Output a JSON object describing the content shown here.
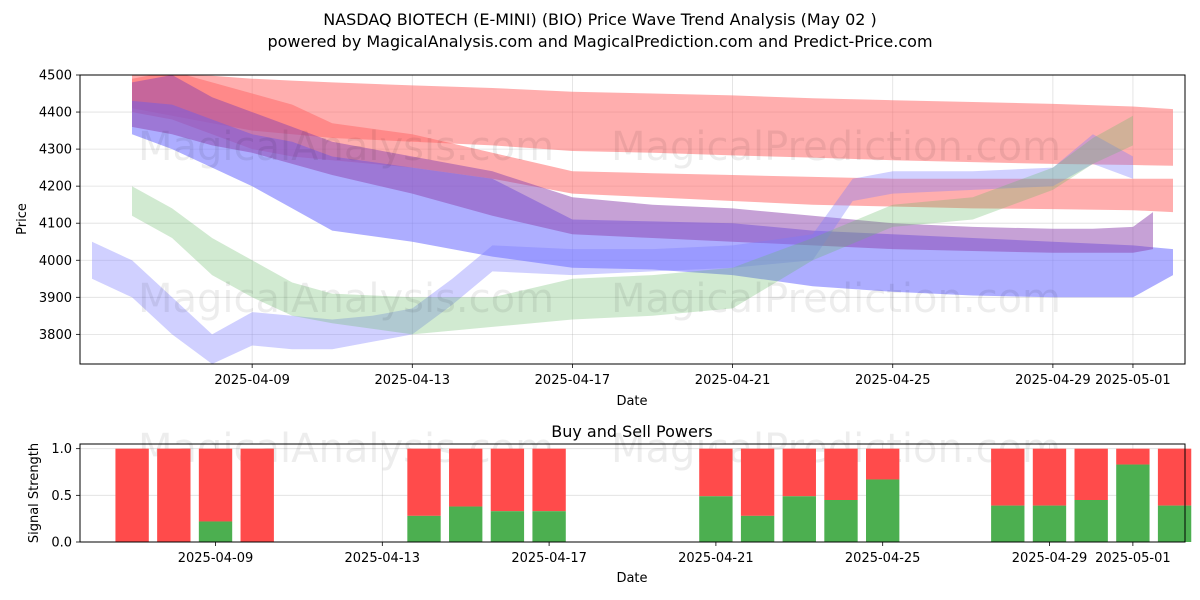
{
  "chart_data": [
    {
      "type": "area",
      "title": "NASDAQ BIOTECH (E-MINI) (BIO) Price Wave Trend Analysis (May 02 )",
      "subtitle": "powered by MagicalAnalysis.com and MagicalPrediction.com and Predict-Price.com",
      "xlabel": "Date",
      "ylabel": "Price",
      "ylim": [
        3720,
        4500
      ],
      "yticks": [
        3800,
        3900,
        4000,
        4100,
        4200,
        4300,
        4400,
        4500
      ],
      "xlim_days": [
        -4.3,
        23.3
      ],
      "xticks": [
        {
          "label": "2025-04-09",
          "day": 0
        },
        {
          "label": "2025-04-13",
          "day": 4
        },
        {
          "label": "2025-04-17",
          "day": 8
        },
        {
          "label": "2025-04-21",
          "day": 12
        },
        {
          "label": "2025-04-25",
          "day": 16
        },
        {
          "label": "2025-04-29",
          "day": 20
        },
        {
          "label": "2025-05-01",
          "day": 22
        }
      ],
      "grid": true,
      "watermarks": [
        "MagicalAnalysis.com",
        "MagicalPrediction.com"
      ],
      "series": [
        {
          "name": "red-band-upper",
          "color": "#ff6b6b",
          "opacity": 0.55,
          "x": [
            -3,
            -2,
            -1,
            0,
            1,
            2,
            4,
            6,
            8,
            10,
            12,
            14,
            16,
            18,
            20,
            22,
            23
          ],
          "upper": [
            4510,
            4500,
            4498,
            4490,
            4485,
            4480,
            4472,
            4465,
            4455,
            4450,
            4445,
            4437,
            4432,
            4427,
            4422,
            4415,
            4408
          ],
          "lower": [
            4410,
            4390,
            4370,
            4350,
            4340,
            4330,
            4320,
            4310,
            4295,
            4290,
            4283,
            4277,
            4270,
            4265,
            4260,
            4257,
            4255
          ]
        },
        {
          "name": "red-band-lower",
          "color": "#ff6b6b",
          "opacity": 0.55,
          "x": [
            -3,
            -2,
            -1,
            0,
            1,
            2,
            4,
            6,
            8,
            10,
            12,
            14,
            16,
            18,
            20,
            22,
            23
          ],
          "upper": [
            4490,
            4510,
            4480,
            4450,
            4420,
            4370,
            4340,
            4290,
            4240,
            4235,
            4230,
            4225,
            4220,
            4220,
            4220,
            4220,
            4220
          ],
          "lower": [
            4400,
            4380,
            4340,
            4300,
            4280,
            4270,
            4250,
            4220,
            4180,
            4170,
            4160,
            4150,
            4145,
            4140,
            4138,
            4135,
            4130
          ]
        },
        {
          "name": "blue-band-upper",
          "color": "#7777ff",
          "opacity": 0.6,
          "x": [
            -3,
            -2,
            -1,
            0,
            1,
            2,
            4,
            6,
            8,
            10,
            12,
            14,
            16,
            18,
            20,
            22,
            23
          ],
          "upper": [
            4430,
            4420,
            4380,
            4340,
            4320,
            4280,
            4250,
            4220,
            4110,
            4105,
            4100,
            4080,
            4070,
            4060,
            4050,
            4040,
            4030
          ],
          "lower": [
            4340,
            4300,
            4250,
            4200,
            4140,
            4080,
            4050,
            4010,
            3980,
            3975,
            3960,
            3930,
            3915,
            3905,
            3900,
            3900,
            3960
          ]
        },
        {
          "name": "purple-band",
          "color": "#8e44ad",
          "opacity": 0.5,
          "x": [
            -3,
            -2,
            -1,
            0,
            1,
            2,
            4,
            6,
            8,
            10,
            12,
            14,
            16,
            18,
            20,
            21,
            22,
            22.5
          ],
          "upper": [
            4480,
            4500,
            4440,
            4400,
            4360,
            4320,
            4280,
            4240,
            4170,
            4150,
            4140,
            4120,
            4100,
            4090,
            4085,
            4085,
            4090,
            4130
          ],
          "lower": [
            4360,
            4340,
            4310,
            4290,
            4260,
            4230,
            4180,
            4120,
            4070,
            4060,
            4050,
            4040,
            4030,
            4025,
            4020,
            4020,
            4020,
            4030
          ]
        },
        {
          "name": "blue-wave-rising",
          "color": "#7777ff",
          "opacity": 0.35,
          "x": [
            -4,
            -3,
            -2,
            -1,
            0,
            1,
            2,
            3,
            4,
            5,
            6,
            8,
            10,
            12,
            14,
            15,
            16,
            18,
            20,
            21,
            22
          ],
          "upper": [
            4050,
            4000,
            3900,
            3800,
            3860,
            3850,
            3840,
            3850,
            3870,
            3950,
            4040,
            4030,
            4030,
            4040,
            4070,
            4220,
            4240,
            4240,
            4250,
            4340,
            4280
          ],
          "lower": [
            3950,
            3900,
            3800,
            3720,
            3770,
            3760,
            3760,
            3780,
            3800,
            3880,
            3970,
            3960,
            3970,
            3980,
            4000,
            4160,
            4180,
            4190,
            4200,
            4260,
            4220
          ]
        },
        {
          "name": "green-wave",
          "color": "#66bb66",
          "opacity": 0.3,
          "x": [
            -3,
            -2,
            -1,
            0,
            1,
            2,
            4,
            6,
            8,
            10,
            12,
            14,
            16,
            18,
            20,
            21,
            22
          ],
          "upper": [
            4200,
            4140,
            4060,
            4000,
            3940,
            3910,
            3900,
            3900,
            3950,
            3960,
            3980,
            4060,
            4150,
            4170,
            4250,
            4330,
            4390
          ],
          "lower": [
            4120,
            4060,
            3960,
            3900,
            3850,
            3830,
            3800,
            3820,
            3840,
            3850,
            3870,
            4000,
            4090,
            4110,
            4190,
            4260,
            4310
          ]
        }
      ]
    },
    {
      "type": "bar",
      "title": "Buy and Sell Powers",
      "xlabel": "Date",
      "ylabel": "Signal Strength",
      "ylim": [
        0,
        1.05
      ],
      "yticks": [
        {
          "label": "0.0",
          "value": 0
        },
        {
          "label": "0.5",
          "value": 0.5
        },
        {
          "label": "1.0",
          "value": 1.0
        }
      ],
      "xlim_days": [
        -3.25,
        23.25
      ],
      "xticks": [
        {
          "label": "2025-04-09",
          "day": 0
        },
        {
          "label": "2025-04-13",
          "day": 4
        },
        {
          "label": "2025-04-17",
          "day": 8
        },
        {
          "label": "2025-04-21",
          "day": 12
        },
        {
          "label": "2025-04-25",
          "day": 16
        },
        {
          "label": "2025-04-29",
          "day": 20
        },
        {
          "label": "2025-05-01",
          "day": 22
        }
      ],
      "grid": true,
      "watermarks": [
        "MagicalAnalysis.com",
        "MagicalPrediction.com"
      ],
      "colors": {
        "buy": "#4caf50",
        "sell": "#ff4b4b"
      },
      "bars": [
        {
          "day": -2,
          "buy": 0.0
        },
        {
          "day": -1,
          "buy": 0.0
        },
        {
          "day": 0,
          "buy": 0.22
        },
        {
          "day": 1,
          "buy": 0.0
        },
        {
          "day": 5,
          "buy": 0.28
        },
        {
          "day": 6,
          "buy": 0.38
        },
        {
          "day": 7,
          "buy": 0.33
        },
        {
          "day": 8,
          "buy": 0.33
        },
        {
          "day": 12,
          "buy": 0.49
        },
        {
          "day": 13,
          "buy": 0.28
        },
        {
          "day": 14,
          "buy": 0.49
        },
        {
          "day": 15,
          "buy": 0.45
        },
        {
          "day": 16,
          "buy": 0.67
        },
        {
          "day": 19,
          "buy": 0.39
        },
        {
          "day": 20,
          "buy": 0.39
        },
        {
          "day": 21,
          "buy": 0.45
        },
        {
          "day": 22,
          "buy": 0.83
        },
        {
          "day": 23,
          "buy": 0.39
        }
      ]
    }
  ]
}
